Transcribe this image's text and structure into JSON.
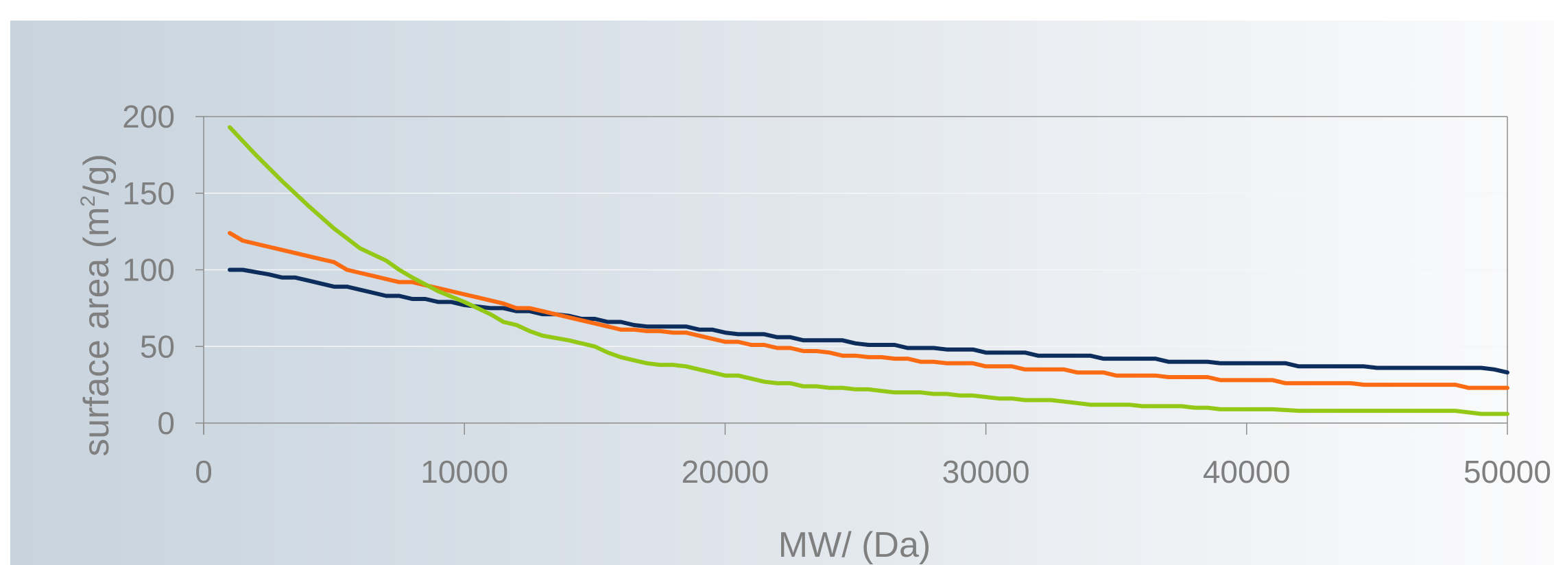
{
  "chart_data": {
    "type": "line",
    "xlabel": "MW/ (Da)",
    "ylabel": "surface area (m²/g)",
    "ylabel_parts": {
      "before": "surface area (m",
      "sup": "2",
      "after": "/g)"
    },
    "xlim": [
      0,
      50000
    ],
    "ylim": [
      0,
      200
    ],
    "x_ticks": [
      0,
      10000,
      20000,
      30000,
      40000,
      50000
    ],
    "x_tick_labels": [
      "0",
      "10000",
      "20000",
      "30000",
      "40000",
      "50000"
    ],
    "y_ticks": [
      0,
      50,
      100,
      150,
      200
    ],
    "y_tick_labels": [
      "0",
      "50",
      "100",
      "150",
      "200"
    ],
    "grid": "horizontal",
    "legend": "none",
    "series": [
      {
        "color": "#0d2d5c",
        "points": [
          [
            1000,
            100
          ],
          [
            1500,
            100
          ],
          [
            2500,
            97
          ],
          [
            3000,
            95
          ],
          [
            3500,
            95
          ],
          [
            4000,
            93
          ],
          [
            4500,
            91
          ],
          [
            5000,
            89
          ],
          [
            5500,
            89
          ],
          [
            6000,
            87
          ],
          [
            6500,
            85
          ],
          [
            7000,
            83
          ],
          [
            7500,
            83
          ],
          [
            8000,
            81
          ],
          [
            8500,
            81
          ],
          [
            9000,
            79
          ],
          [
            9500,
            79
          ],
          [
            10000,
            77
          ],
          [
            10500,
            76
          ],
          [
            11000,
            75
          ],
          [
            11500,
            75
          ],
          [
            12000,
            73
          ],
          [
            12500,
            73
          ],
          [
            13000,
            71
          ],
          [
            13500,
            71
          ],
          [
            14000,
            70
          ],
          [
            14500,
            68
          ],
          [
            15000,
            68
          ],
          [
            15500,
            66
          ],
          [
            16000,
            66
          ],
          [
            16500,
            64
          ],
          [
            17000,
            63
          ],
          [
            17500,
            63
          ],
          [
            18000,
            63
          ],
          [
            18500,
            63
          ],
          [
            19000,
            61
          ],
          [
            19500,
            61
          ],
          [
            20000,
            59
          ],
          [
            20500,
            58
          ],
          [
            21000,
            58
          ],
          [
            21500,
            58
          ],
          [
            22000,
            56
          ],
          [
            22500,
            56
          ],
          [
            23000,
            54
          ],
          [
            23500,
            54
          ],
          [
            24000,
            54
          ],
          [
            24500,
            54
          ],
          [
            25000,
            52
          ],
          [
            25500,
            51
          ],
          [
            26000,
            51
          ],
          [
            26500,
            51
          ],
          [
            27000,
            49
          ],
          [
            27500,
            49
          ],
          [
            28000,
            49
          ],
          [
            28500,
            48
          ],
          [
            29000,
            48
          ],
          [
            29500,
            48
          ],
          [
            30000,
            46
          ],
          [
            30500,
            46
          ],
          [
            31000,
            46
          ],
          [
            31500,
            46
          ],
          [
            32000,
            44
          ],
          [
            32500,
            44
          ],
          [
            33000,
            44
          ],
          [
            33500,
            44
          ],
          [
            34000,
            44
          ],
          [
            34500,
            42
          ],
          [
            35000,
            42
          ],
          [
            35500,
            42
          ],
          [
            36000,
            42
          ],
          [
            36500,
            42
          ],
          [
            37000,
            40
          ],
          [
            37500,
            40
          ],
          [
            38000,
            40
          ],
          [
            38500,
            40
          ],
          [
            39000,
            39
          ],
          [
            39500,
            39
          ],
          [
            40000,
            39
          ],
          [
            40500,
            39
          ],
          [
            41000,
            39
          ],
          [
            41500,
            39
          ],
          [
            42000,
            37
          ],
          [
            42500,
            37
          ],
          [
            43000,
            37
          ],
          [
            43500,
            37
          ],
          [
            44000,
            37
          ],
          [
            44500,
            37
          ],
          [
            45000,
            36
          ],
          [
            45500,
            36
          ],
          [
            46000,
            36
          ],
          [
            46500,
            36
          ],
          [
            47000,
            36
          ],
          [
            47500,
            36
          ],
          [
            48000,
            36
          ],
          [
            48500,
            36
          ],
          [
            49000,
            36
          ],
          [
            49500,
            35
          ],
          [
            50000,
            33
          ]
        ]
      },
      {
        "color": "#fa6b14",
        "points": [
          [
            1000,
            124
          ],
          [
            1500,
            119
          ],
          [
            2000,
            117
          ],
          [
            2500,
            115
          ],
          [
            3000,
            113
          ],
          [
            3500,
            111
          ],
          [
            4000,
            109
          ],
          [
            4500,
            107
          ],
          [
            5000,
            105
          ],
          [
            5500,
            100
          ],
          [
            6000,
            98
          ],
          [
            6500,
            96
          ],
          [
            7000,
            94
          ],
          [
            7500,
            92
          ],
          [
            8000,
            92
          ],
          [
            8500,
            90
          ],
          [
            9000,
            88
          ],
          [
            9500,
            86
          ],
          [
            10000,
            84
          ],
          [
            10500,
            82
          ],
          [
            11000,
            80
          ],
          [
            11500,
            78
          ],
          [
            12000,
            75
          ],
          [
            12500,
            75
          ],
          [
            13000,
            73
          ],
          [
            13500,
            71
          ],
          [
            14000,
            69
          ],
          [
            14500,
            67
          ],
          [
            15000,
            65
          ],
          [
            15500,
            63
          ],
          [
            16000,
            61
          ],
          [
            16500,
            61
          ],
          [
            17000,
            60
          ],
          [
            17500,
            60
          ],
          [
            18000,
            59
          ],
          [
            18500,
            59
          ],
          [
            19000,
            57
          ],
          [
            19500,
            55
          ],
          [
            20000,
            53
          ],
          [
            20500,
            53
          ],
          [
            21000,
            51
          ],
          [
            21500,
            51
          ],
          [
            22000,
            49
          ],
          [
            22500,
            49
          ],
          [
            23000,
            47
          ],
          [
            23500,
            47
          ],
          [
            24000,
            46
          ],
          [
            24500,
            44
          ],
          [
            25000,
            44
          ],
          [
            25500,
            43
          ],
          [
            26000,
            43
          ],
          [
            26500,
            42
          ],
          [
            27000,
            42
          ],
          [
            27500,
            40
          ],
          [
            28000,
            40
          ],
          [
            28500,
            39
          ],
          [
            29000,
            39
          ],
          [
            29500,
            39
          ],
          [
            30000,
            37
          ],
          [
            30500,
            37
          ],
          [
            31000,
            37
          ],
          [
            31500,
            35
          ],
          [
            32000,
            35
          ],
          [
            32500,
            35
          ],
          [
            33000,
            35
          ],
          [
            33500,
            33
          ],
          [
            34000,
            33
          ],
          [
            34500,
            33
          ],
          [
            35000,
            31
          ],
          [
            35500,
            31
          ],
          [
            36000,
            31
          ],
          [
            36500,
            31
          ],
          [
            37000,
            30
          ],
          [
            37500,
            30
          ],
          [
            38000,
            30
          ],
          [
            38500,
            30
          ],
          [
            39000,
            28
          ],
          [
            39500,
            28
          ],
          [
            40000,
            28
          ],
          [
            40500,
            28
          ],
          [
            41000,
            28
          ],
          [
            41500,
            26
          ],
          [
            42000,
            26
          ],
          [
            42500,
            26
          ],
          [
            43000,
            26
          ],
          [
            43500,
            26
          ],
          [
            44000,
            26
          ],
          [
            44500,
            25
          ],
          [
            45000,
            25
          ],
          [
            45500,
            25
          ],
          [
            46000,
            25
          ],
          [
            46500,
            25
          ],
          [
            47000,
            25
          ],
          [
            47500,
            25
          ],
          [
            48000,
            25
          ],
          [
            48500,
            23
          ],
          [
            49000,
            23
          ],
          [
            49500,
            23
          ],
          [
            50000,
            23
          ]
        ]
      },
      {
        "color": "#94c816",
        "points": [
          [
            1000,
            193
          ],
          [
            2000,
            175
          ],
          [
            3000,
            158
          ],
          [
            4000,
            142
          ],
          [
            5000,
            127
          ],
          [
            6000,
            114
          ],
          [
            7000,
            106
          ],
          [
            7500,
            100
          ],
          [
            8000,
            95
          ],
          [
            9000,
            86
          ],
          [
            10000,
            79
          ],
          [
            11000,
            71
          ],
          [
            11500,
            66
          ],
          [
            12000,
            64
          ],
          [
            12500,
            60
          ],
          [
            13000,
            57
          ],
          [
            14000,
            54
          ],
          [
            14500,
            52
          ],
          [
            15000,
            50
          ],
          [
            15500,
            46
          ],
          [
            16000,
            43
          ],
          [
            16500,
            41
          ],
          [
            17000,
            39
          ],
          [
            17500,
            38
          ],
          [
            18000,
            38
          ],
          [
            18500,
            37
          ],
          [
            19000,
            35
          ],
          [
            19500,
            33
          ],
          [
            20000,
            31
          ],
          [
            20500,
            31
          ],
          [
            21000,
            29
          ],
          [
            21500,
            27
          ],
          [
            22000,
            26
          ],
          [
            22500,
            26
          ],
          [
            23000,
            24
          ],
          [
            23500,
            24
          ],
          [
            24000,
            23
          ],
          [
            24500,
            23
          ],
          [
            25000,
            22
          ],
          [
            25500,
            22
          ],
          [
            26000,
            21
          ],
          [
            26500,
            20
          ],
          [
            27000,
            20
          ],
          [
            27500,
            20
          ],
          [
            28000,
            19
          ],
          [
            28500,
            19
          ],
          [
            29000,
            18
          ],
          [
            29500,
            18
          ],
          [
            30000,
            17
          ],
          [
            30500,
            16
          ],
          [
            31000,
            16
          ],
          [
            31500,
            15
          ],
          [
            32000,
            15
          ],
          [
            32500,
            15
          ],
          [
            33000,
            14
          ],
          [
            33500,
            13
          ],
          [
            34000,
            12
          ],
          [
            34500,
            12
          ],
          [
            35000,
            12
          ],
          [
            35500,
            12
          ],
          [
            36000,
            11
          ],
          [
            36500,
            11
          ],
          [
            37000,
            11
          ],
          [
            37500,
            11
          ],
          [
            38000,
            10
          ],
          [
            38500,
            10
          ],
          [
            39000,
            9
          ],
          [
            39500,
            9
          ],
          [
            40000,
            9
          ],
          [
            41000,
            9
          ],
          [
            42000,
            8
          ],
          [
            43000,
            8
          ],
          [
            44000,
            8
          ],
          [
            45000,
            8
          ],
          [
            46000,
            8
          ],
          [
            47000,
            8
          ],
          [
            48000,
            8
          ],
          [
            48500,
            7
          ],
          [
            49000,
            6
          ],
          [
            49500,
            6
          ],
          [
            50000,
            6
          ]
        ]
      }
    ]
  }
}
